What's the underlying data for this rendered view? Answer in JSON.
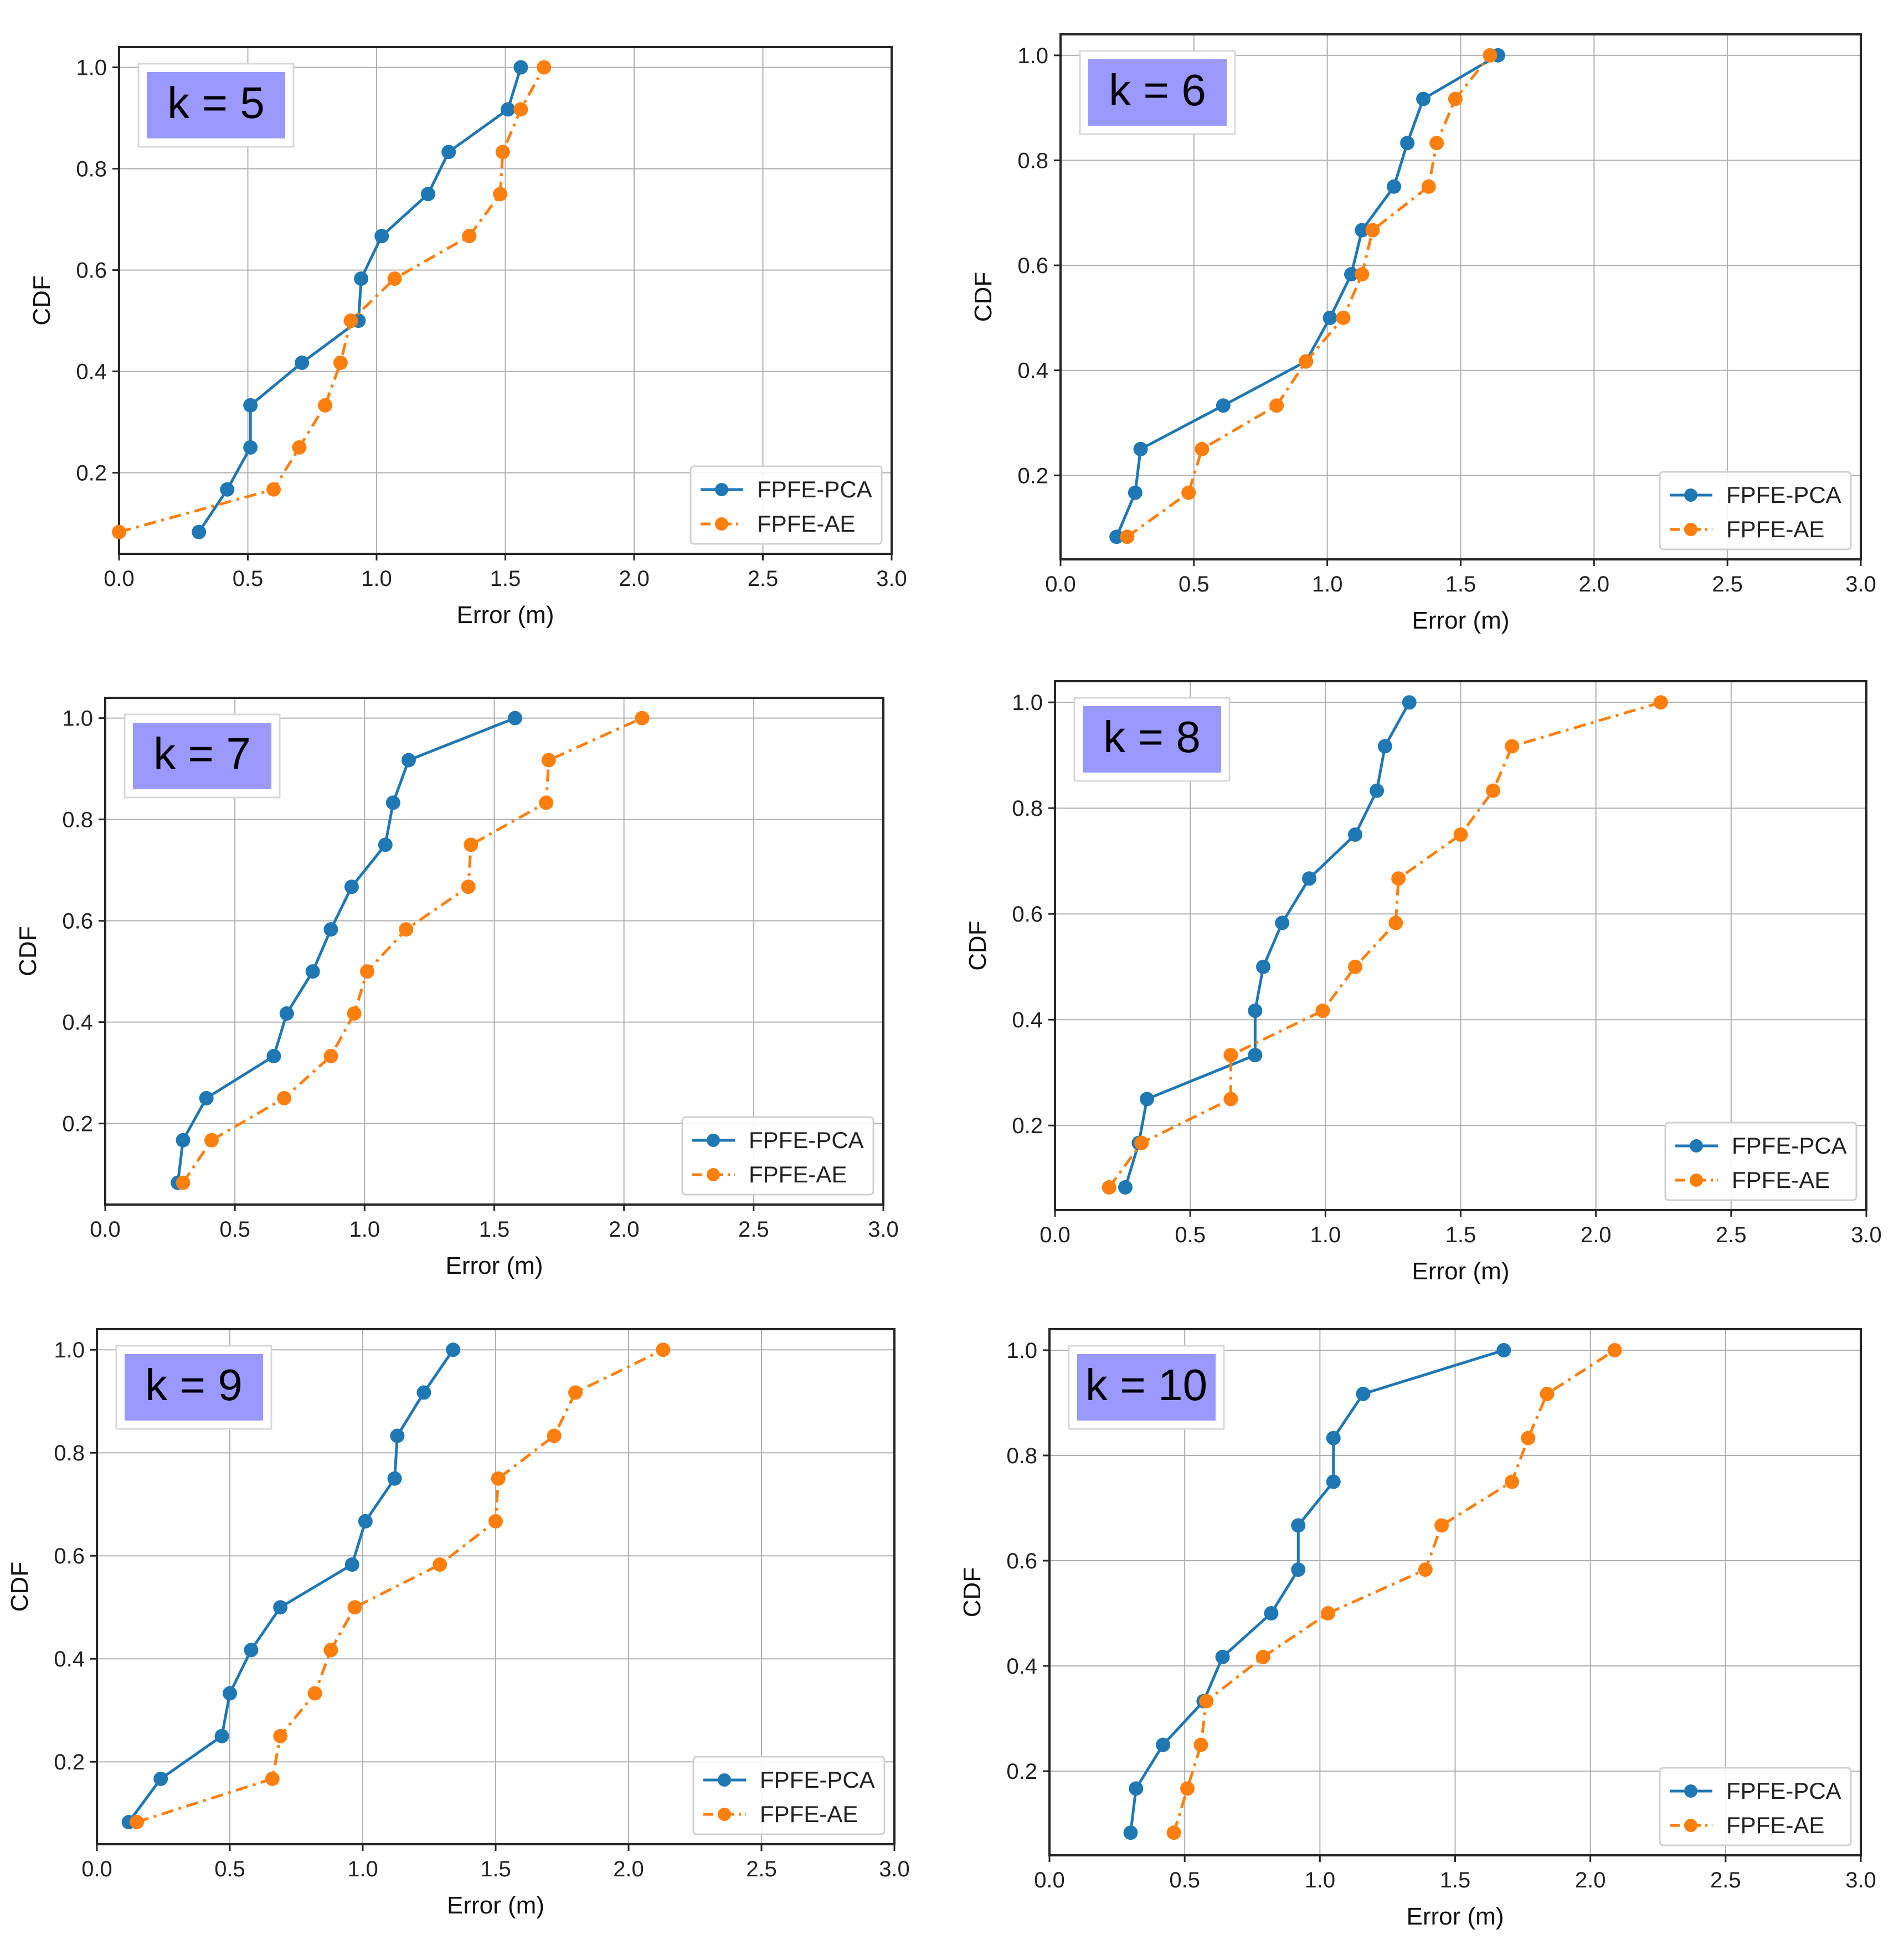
{
  "figure": {
    "description_label": "CDF of localization error for k = 5 to 10"
  },
  "colors": {
    "pca": "#1f77b4",
    "ae": "#ff7f0e",
    "kbox": "#9999ff",
    "grid": "#b0b0b0",
    "frame": "#262626"
  },
  "chart_data": [
    {
      "type": "line",
      "title": "k = 5",
      "k_value": "5",
      "xlabel": "Error (m)",
      "ylabel": "CDF",
      "xlim": [
        0,
        3.0
      ],
      "ylim": [
        0.04,
        1.04
      ],
      "xticks": [
        "0.0",
        "0.5",
        "1.0",
        "1.5",
        "2.0",
        "2.5",
        "3.0"
      ],
      "yticks": [
        "0.2",
        "0.4",
        "0.6",
        "0.8",
        "1.0"
      ],
      "legend_position": "lower-right",
      "series": [
        {
          "name": "FPFE-PCA",
          "style": "solid",
          "x": [
            0.31,
            0.42,
            0.51,
            0.51,
            0.71,
            0.93,
            0.94,
            1.02,
            1.2,
            1.28,
            1.51,
            1.56
          ],
          "y": [
            0.083,
            0.167,
            0.25,
            0.333,
            0.417,
            0.5,
            0.583,
            0.667,
            0.75,
            0.833,
            0.917,
            1.0
          ]
        },
        {
          "name": "FPFE-AE",
          "style": "dashdot",
          "x": [
            0.0,
            0.6,
            0.7,
            0.8,
            0.86,
            0.9,
            1.07,
            1.36,
            1.48,
            1.49,
            1.56,
            1.65
          ],
          "y": [
            0.083,
            0.167,
            0.25,
            0.333,
            0.417,
            0.5,
            0.583,
            0.667,
            0.75,
            0.833,
            0.917,
            1.0
          ]
        }
      ]
    },
    {
      "type": "line",
      "title": "k = 6",
      "k_value": "6",
      "xlabel": "Error (m)",
      "ylabel": "CDF",
      "xlim": [
        0,
        3.0
      ],
      "ylim": [
        0.04,
        1.04
      ],
      "xticks": [
        "0.0",
        "0.5",
        "1.0",
        "1.5",
        "2.0",
        "2.5",
        "3.0"
      ],
      "yticks": [
        "0.2",
        "0.4",
        "0.6",
        "0.8",
        "1.0"
      ],
      "legend_position": "lower-right",
      "series": [
        {
          "name": "FPFE-PCA",
          "style": "solid",
          "x": [
            0.21,
            0.28,
            0.3,
            0.61,
            0.92,
            1.01,
            1.09,
            1.13,
            1.25,
            1.3,
            1.36,
            1.64
          ],
          "y": [
            0.083,
            0.167,
            0.25,
            0.333,
            0.417,
            0.5,
            0.583,
            0.667,
            0.75,
            0.833,
            0.917,
            1.0
          ]
        },
        {
          "name": "FPFE-AE",
          "style": "dashdot",
          "x": [
            0.25,
            0.48,
            0.53,
            0.81,
            0.92,
            1.06,
            1.13,
            1.17,
            1.38,
            1.41,
            1.48,
            1.61
          ],
          "y": [
            0.083,
            0.167,
            0.25,
            0.333,
            0.417,
            0.5,
            0.583,
            0.667,
            0.75,
            0.833,
            0.917,
            1.0
          ]
        }
      ]
    },
    {
      "type": "line",
      "title": "k = 7",
      "k_value": "7",
      "xlabel": "Error (m)",
      "ylabel": "CDF",
      "xlim": [
        0,
        3.0
      ],
      "ylim": [
        0.04,
        1.04
      ],
      "xticks": [
        "0.0",
        "0.5",
        "1.0",
        "1.5",
        "2.0",
        "2.5",
        "3.0"
      ],
      "yticks": [
        "0.2",
        "0.4",
        "0.6",
        "0.8",
        "1.0"
      ],
      "legend_position": "lower-right",
      "series": [
        {
          "name": "FPFE-PCA",
          "style": "solid",
          "x": [
            0.28,
            0.3,
            0.39,
            0.65,
            0.7,
            0.8,
            0.87,
            0.95,
            1.08,
            1.11,
            1.17,
            1.58
          ],
          "y": [
            0.083,
            0.167,
            0.25,
            0.333,
            0.417,
            0.5,
            0.583,
            0.667,
            0.75,
            0.833,
            0.917,
            1.0
          ]
        },
        {
          "name": "FPFE-AE",
          "style": "dashdot",
          "x": [
            0.3,
            0.41,
            0.69,
            0.87,
            0.96,
            1.01,
            1.16,
            1.4,
            1.41,
            1.7,
            1.71,
            2.07
          ],
          "y": [
            0.083,
            0.167,
            0.25,
            0.333,
            0.417,
            0.5,
            0.583,
            0.667,
            0.75,
            0.833,
            0.917,
            1.0
          ]
        }
      ]
    },
    {
      "type": "line",
      "title": "k = 8",
      "k_value": "8",
      "xlabel": "Error (m)",
      "ylabel": "CDF",
      "xlim": [
        0,
        3.0
      ],
      "ylim": [
        0.04,
        1.04
      ],
      "xticks": [
        "0.0",
        "0.5",
        "1.0",
        "1.5",
        "2.0",
        "2.5",
        "3.0"
      ],
      "yticks": [
        "0.2",
        "0.4",
        "0.6",
        "0.8",
        "1.0"
      ],
      "legend_position": "lower-right",
      "series": [
        {
          "name": "FPFE-PCA",
          "style": "solid",
          "x": [
            0.26,
            0.31,
            0.34,
            0.74,
            0.74,
            0.77,
            0.84,
            0.94,
            1.11,
            1.19,
            1.22,
            1.31
          ],
          "y": [
            0.083,
            0.167,
            0.25,
            0.333,
            0.417,
            0.5,
            0.583,
            0.667,
            0.75,
            0.833,
            0.917,
            1.0
          ]
        },
        {
          "name": "FPFE-AE",
          "style": "dashdot",
          "x": [
            0.2,
            0.32,
            0.65,
            0.65,
            0.99,
            1.11,
            1.26,
            1.27,
            1.5,
            1.62,
            1.69,
            2.24
          ],
          "y": [
            0.083,
            0.167,
            0.25,
            0.333,
            0.417,
            0.5,
            0.583,
            0.667,
            0.75,
            0.833,
            0.917,
            1.0
          ]
        }
      ]
    },
    {
      "type": "line",
      "title": "k = 9",
      "k_value": "9",
      "xlabel": "Error (m)",
      "ylabel": "CDF",
      "xlim": [
        0,
        3.0
      ],
      "ylim": [
        0.04,
        1.04
      ],
      "xticks": [
        "0.0",
        "0.5",
        "1.0",
        "1.5",
        "2.0",
        "2.5",
        "3.0"
      ],
      "yticks": [
        "0.2",
        "0.4",
        "0.6",
        "0.8",
        "1.0"
      ],
      "legend_position": "lower-right",
      "series": [
        {
          "name": "FPFE-PCA",
          "style": "solid",
          "x": [
            0.12,
            0.24,
            0.47,
            0.5,
            0.58,
            0.69,
            0.96,
            1.01,
            1.12,
            1.13,
            1.23,
            1.34
          ],
          "y": [
            0.083,
            0.167,
            0.25,
            0.333,
            0.417,
            0.5,
            0.583,
            0.667,
            0.75,
            0.833,
            0.917,
            1.0
          ]
        },
        {
          "name": "FPFE-AE",
          "style": "dashdot",
          "x": [
            0.15,
            0.66,
            0.69,
            0.82,
            0.88,
            0.97,
            1.29,
            1.5,
            1.51,
            1.72,
            1.8,
            2.13
          ],
          "y": [
            0.083,
            0.167,
            0.25,
            0.333,
            0.417,
            0.5,
            0.583,
            0.667,
            0.75,
            0.833,
            0.917,
            1.0
          ]
        }
      ]
    },
    {
      "type": "line",
      "title": "k = 10",
      "k_value": "10",
      "xlabel": "Error (m)",
      "ylabel": "CDF",
      "xlim": [
        0,
        3.0
      ],
      "ylim": [
        0.04,
        1.04
      ],
      "xticks": [
        "0.0",
        "0.5",
        "1.0",
        "1.5",
        "2.0",
        "2.5",
        "3.0"
      ],
      "yticks": [
        "0.2",
        "0.4",
        "0.6",
        "0.8",
        "1.0"
      ],
      "legend_position": "lower-right",
      "series": [
        {
          "name": "FPFE-PCA",
          "style": "solid",
          "x": [
            0.3,
            0.32,
            0.42,
            0.57,
            0.64,
            0.82,
            0.92,
            0.92,
            1.05,
            1.05,
            1.16,
            1.68
          ],
          "y": [
            0.083,
            0.167,
            0.25,
            0.333,
            0.417,
            0.5,
            0.583,
            0.667,
            0.75,
            0.833,
            0.917,
            1.0
          ]
        },
        {
          "name": "FPFE-AE",
          "style": "dashdot",
          "x": [
            0.46,
            0.51,
            0.56,
            0.58,
            0.79,
            1.03,
            1.39,
            1.45,
            1.71,
            1.77,
            1.84,
            2.09
          ],
          "y": [
            0.083,
            0.167,
            0.25,
            0.333,
            0.417,
            0.5,
            0.583,
            0.667,
            0.75,
            0.833,
            0.917,
            1.0
          ]
        }
      ]
    }
  ]
}
